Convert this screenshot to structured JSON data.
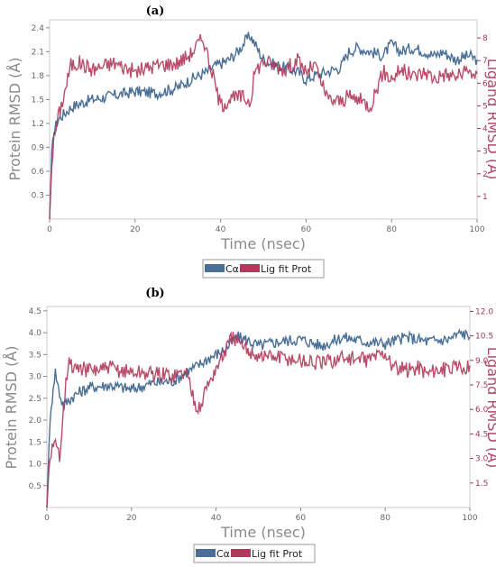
{
  "colors": {
    "ca": "#4a6f96",
    "lig": "#b03a5b",
    "axis": "#888888",
    "ligaxis": "#9b3a57"
  },
  "chart_data": [
    {
      "type": "line",
      "panel_label": "(a)",
      "xlabel": "Time (nsec)",
      "ylabel_left": "Protein RMSD (Å)",
      "ylabel_right": "Ligand RMSD (Å)",
      "xlim": [
        0,
        100
      ],
      "ylim_left": [
        0,
        2.5
      ],
      "ylim_right": [
        0,
        8.8
      ],
      "x_ticks": [
        "0",
        "20",
        "40",
        "60",
        "80",
        "100"
      ],
      "y_ticks_left": [
        "0.3",
        "0.6",
        "0.9",
        "1.2",
        "1.5",
        "1.8",
        "2.1",
        "2.4"
      ],
      "y_ticks_right": [
        "1",
        "2",
        "3",
        "4",
        "5",
        "6",
        "7",
        "8"
      ],
      "legend": {
        "placement": "bottom-center",
        "entries": [
          "Cα",
          "Lig fit Prot"
        ]
      },
      "series": [
        {
          "name": "Cα",
          "axis": "left",
          "x": [
            0,
            0.5,
            1,
            2,
            3,
            4,
            5,
            7,
            10,
            15,
            20,
            25,
            30,
            33,
            35,
            37,
            38,
            40,
            42,
            44,
            46,
            47,
            48,
            50,
            52,
            55,
            58,
            60,
            62,
            65,
            68,
            70,
            72,
            75,
            78,
            80,
            82,
            85,
            88,
            90,
            92,
            95,
            98,
            100
          ],
          "y": [
            0,
            0.8,
            1.1,
            1.25,
            1.3,
            1.35,
            1.4,
            1.45,
            1.5,
            1.55,
            1.6,
            1.58,
            1.65,
            1.75,
            1.8,
            1.85,
            1.9,
            1.95,
            2.0,
            2.1,
            2.25,
            2.3,
            2.2,
            2.0,
            1.95,
            1.9,
            1.85,
            1.75,
            1.8,
            1.85,
            1.9,
            2.1,
            2.15,
            2.1,
            2.05,
            2.2,
            2.1,
            2.15,
            2.1,
            2.05,
            2.1,
            2.0,
            2.05,
            2.0
          ]
        },
        {
          "name": "Lig fit Prot",
          "axis": "right",
          "x": [
            0,
            0.5,
            1,
            2,
            3,
            4,
            5,
            7,
            10,
            15,
            20,
            25,
            30,
            33,
            35,
            36,
            37,
            38,
            40,
            42,
            45,
            47,
            48,
            50,
            55,
            58,
            60,
            62,
            65,
            68,
            70,
            72,
            75,
            78,
            80,
            82,
            85,
            88,
            90,
            92,
            95,
            98,
            100
          ],
          "y": [
            0,
            2.5,
            3.5,
            4.5,
            5.2,
            6.0,
            6.8,
            6.9,
            6.6,
            6.9,
            6.5,
            6.8,
            6.9,
            7.3,
            7.8,
            8.0,
            7.2,
            6.5,
            5.0,
            5.3,
            5.4,
            5.2,
            6.5,
            7.0,
            6.6,
            7.0,
            6.5,
            6.8,
            5.3,
            5.2,
            5.4,
            5.3,
            5.0,
            6.5,
            6.2,
            6.6,
            6.3,
            6.5,
            6.2,
            6.4,
            6.3,
            6.5,
            6.4
          ]
        }
      ]
    },
    {
      "type": "line",
      "panel_label": "(b)",
      "xlabel": "Time (nsec)",
      "ylabel_left": "Protein RMSD (Å)",
      "ylabel_right": "Ligand RMSD (Å)",
      "xlim": [
        0,
        100
      ],
      "ylim_left": [
        0,
        4.6
      ],
      "ylim_right": [
        0,
        12.3
      ],
      "x_ticks": [
        "0",
        "20",
        "40",
        "60",
        "80",
        "100"
      ],
      "y_ticks_left": [
        "0.5",
        "1.0",
        "1.5",
        "2.0",
        "2.5",
        "3.0",
        "3.5",
        "4.0",
        "4.5"
      ],
      "y_ticks_right": [
        "1.5",
        "3.0",
        "4.5",
        "6.0",
        "7.5",
        "9.0",
        "10.5",
        "12.0"
      ],
      "legend": {
        "placement": "bottom-center",
        "entries": [
          "Cα",
          "Lig fit Prot"
        ]
      },
      "series": [
        {
          "name": "Cα",
          "axis": "left",
          "x": [
            0,
            0.5,
            1,
            1.5,
            2,
            3,
            4,
            5,
            7,
            10,
            15,
            20,
            25,
            30,
            33,
            35,
            38,
            40,
            42,
            44,
            45,
            47,
            50,
            55,
            60,
            65,
            70,
            75,
            80,
            85,
            90,
            95,
            98,
            100
          ],
          "y": [
            0,
            1.5,
            2.2,
            2.8,
            3.1,
            2.6,
            2.3,
            2.45,
            2.6,
            2.75,
            2.8,
            2.7,
            2.85,
            2.9,
            3.1,
            3.2,
            3.4,
            3.5,
            3.6,
            3.8,
            3.9,
            3.85,
            3.7,
            3.8,
            3.85,
            3.7,
            3.9,
            3.8,
            3.75,
            3.9,
            3.8,
            3.85,
            4.0,
            3.9
          ]
        },
        {
          "name": "Lig fit Prot",
          "axis": "right",
          "x": [
            0,
            0.5,
            1,
            2,
            3,
            4,
            5,
            7,
            10,
            15,
            20,
            25,
            30,
            33,
            35,
            36,
            37,
            38,
            40,
            42,
            44,
            46,
            48,
            50,
            55,
            60,
            65,
            70,
            75,
            80,
            82,
            85,
            88,
            90,
            92,
            95,
            98,
            100
          ],
          "y": [
            0,
            2.5,
            3.5,
            3.8,
            3.2,
            6.5,
            8.8,
            8.5,
            8.4,
            8.5,
            8.3,
            8.2,
            8.1,
            8.3,
            6.5,
            6.0,
            6.8,
            7.5,
            8.5,
            9.5,
            10.5,
            9.8,
            9.6,
            9.3,
            9.2,
            9.0,
            8.8,
            9.2,
            9.0,
            9.5,
            8.5,
            8.4,
            8.6,
            8.2,
            8.5,
            8.4,
            8.6,
            8.7
          ]
        }
      ]
    }
  ]
}
